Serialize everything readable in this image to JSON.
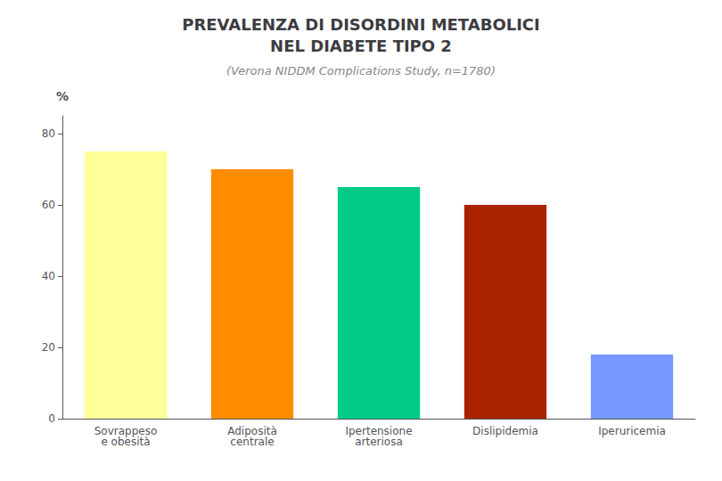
{
  "chart_data": {
    "type": "bar",
    "title": "PREVALENZA DI DISORDINI METABOLICI\nNEL DIABETE TIPO 2",
    "subtitle": "(Verona NIDDM Complications Study, n=1780)",
    "categories": [
      "Sovrappeso\ne obesità",
      "Adiposità\ncentrale",
      "Ipertensione\narteriosa",
      "Dislipidemia",
      "Iperuricemia"
    ],
    "values": [
      75,
      70,
      65,
      60,
      18
    ],
    "colors": [
      "#FFFF99",
      "#FF8C00",
      "#00CC88",
      "#AA2200",
      "#7799FF"
    ],
    "ylabel": "%",
    "ylim": [
      0,
      85
    ],
    "yticks": [
      0,
      20,
      40,
      60,
      80
    ],
    "grid": false
  }
}
